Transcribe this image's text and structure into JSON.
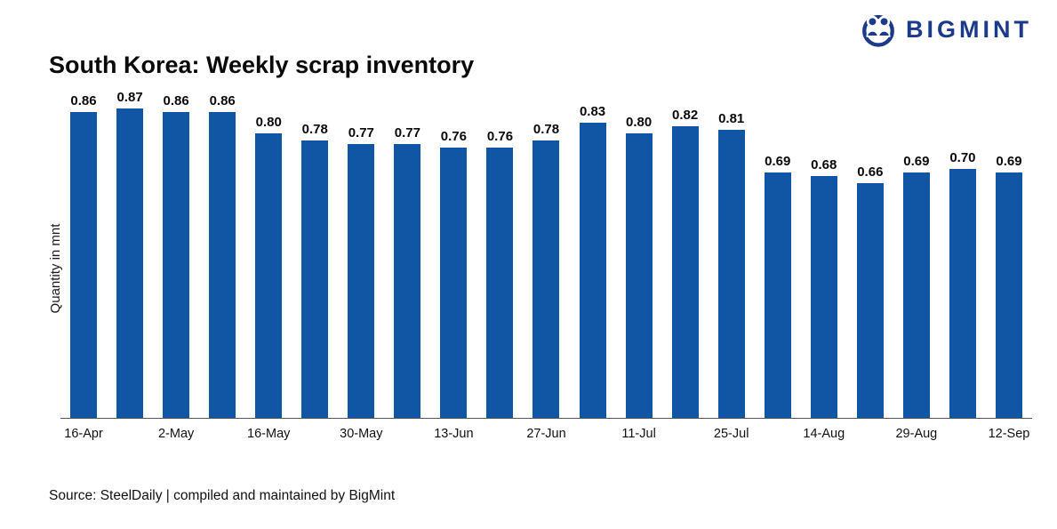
{
  "logo": {
    "text": "BIGMINT"
  },
  "title": "South Korea: Weekly scrap inventory",
  "ylabel": "Quantity in mnt",
  "source": "Source: SteelDaily | compiled and maintained by BigMint",
  "chart_data": {
    "type": "bar",
    "title": "South Korea: Weekly scrap inventory",
    "xlabel": "",
    "ylabel": "Quantity in mnt",
    "ylim": [
      0,
      0.9
    ],
    "grid": false,
    "legend": "none",
    "bar_color": "#1155a5",
    "categories": [
      "16-Apr",
      "",
      "2-May",
      "",
      "16-May",
      "",
      "30-May",
      "",
      "13-Jun",
      "",
      "27-Jun",
      "",
      "11-Jul",
      "",
      "25-Jul",
      "",
      "14-Aug",
      "",
      "29-Aug",
      "",
      "12-Sep"
    ],
    "x_tick_labels": [
      "16-Apr",
      "2-May",
      "16-May",
      "30-May",
      "13-Jun",
      "27-Jun",
      "11-Jul",
      "25-Jul",
      "14-Aug",
      "29-Aug",
      "12-Sep"
    ],
    "values": [
      0.86,
      0.87,
      0.86,
      0.86,
      0.8,
      0.78,
      0.77,
      0.77,
      0.76,
      0.76,
      0.78,
      0.83,
      0.8,
      0.82,
      0.81,
      0.69,
      0.68,
      0.66,
      0.69,
      0.7,
      0.69
    ]
  }
}
